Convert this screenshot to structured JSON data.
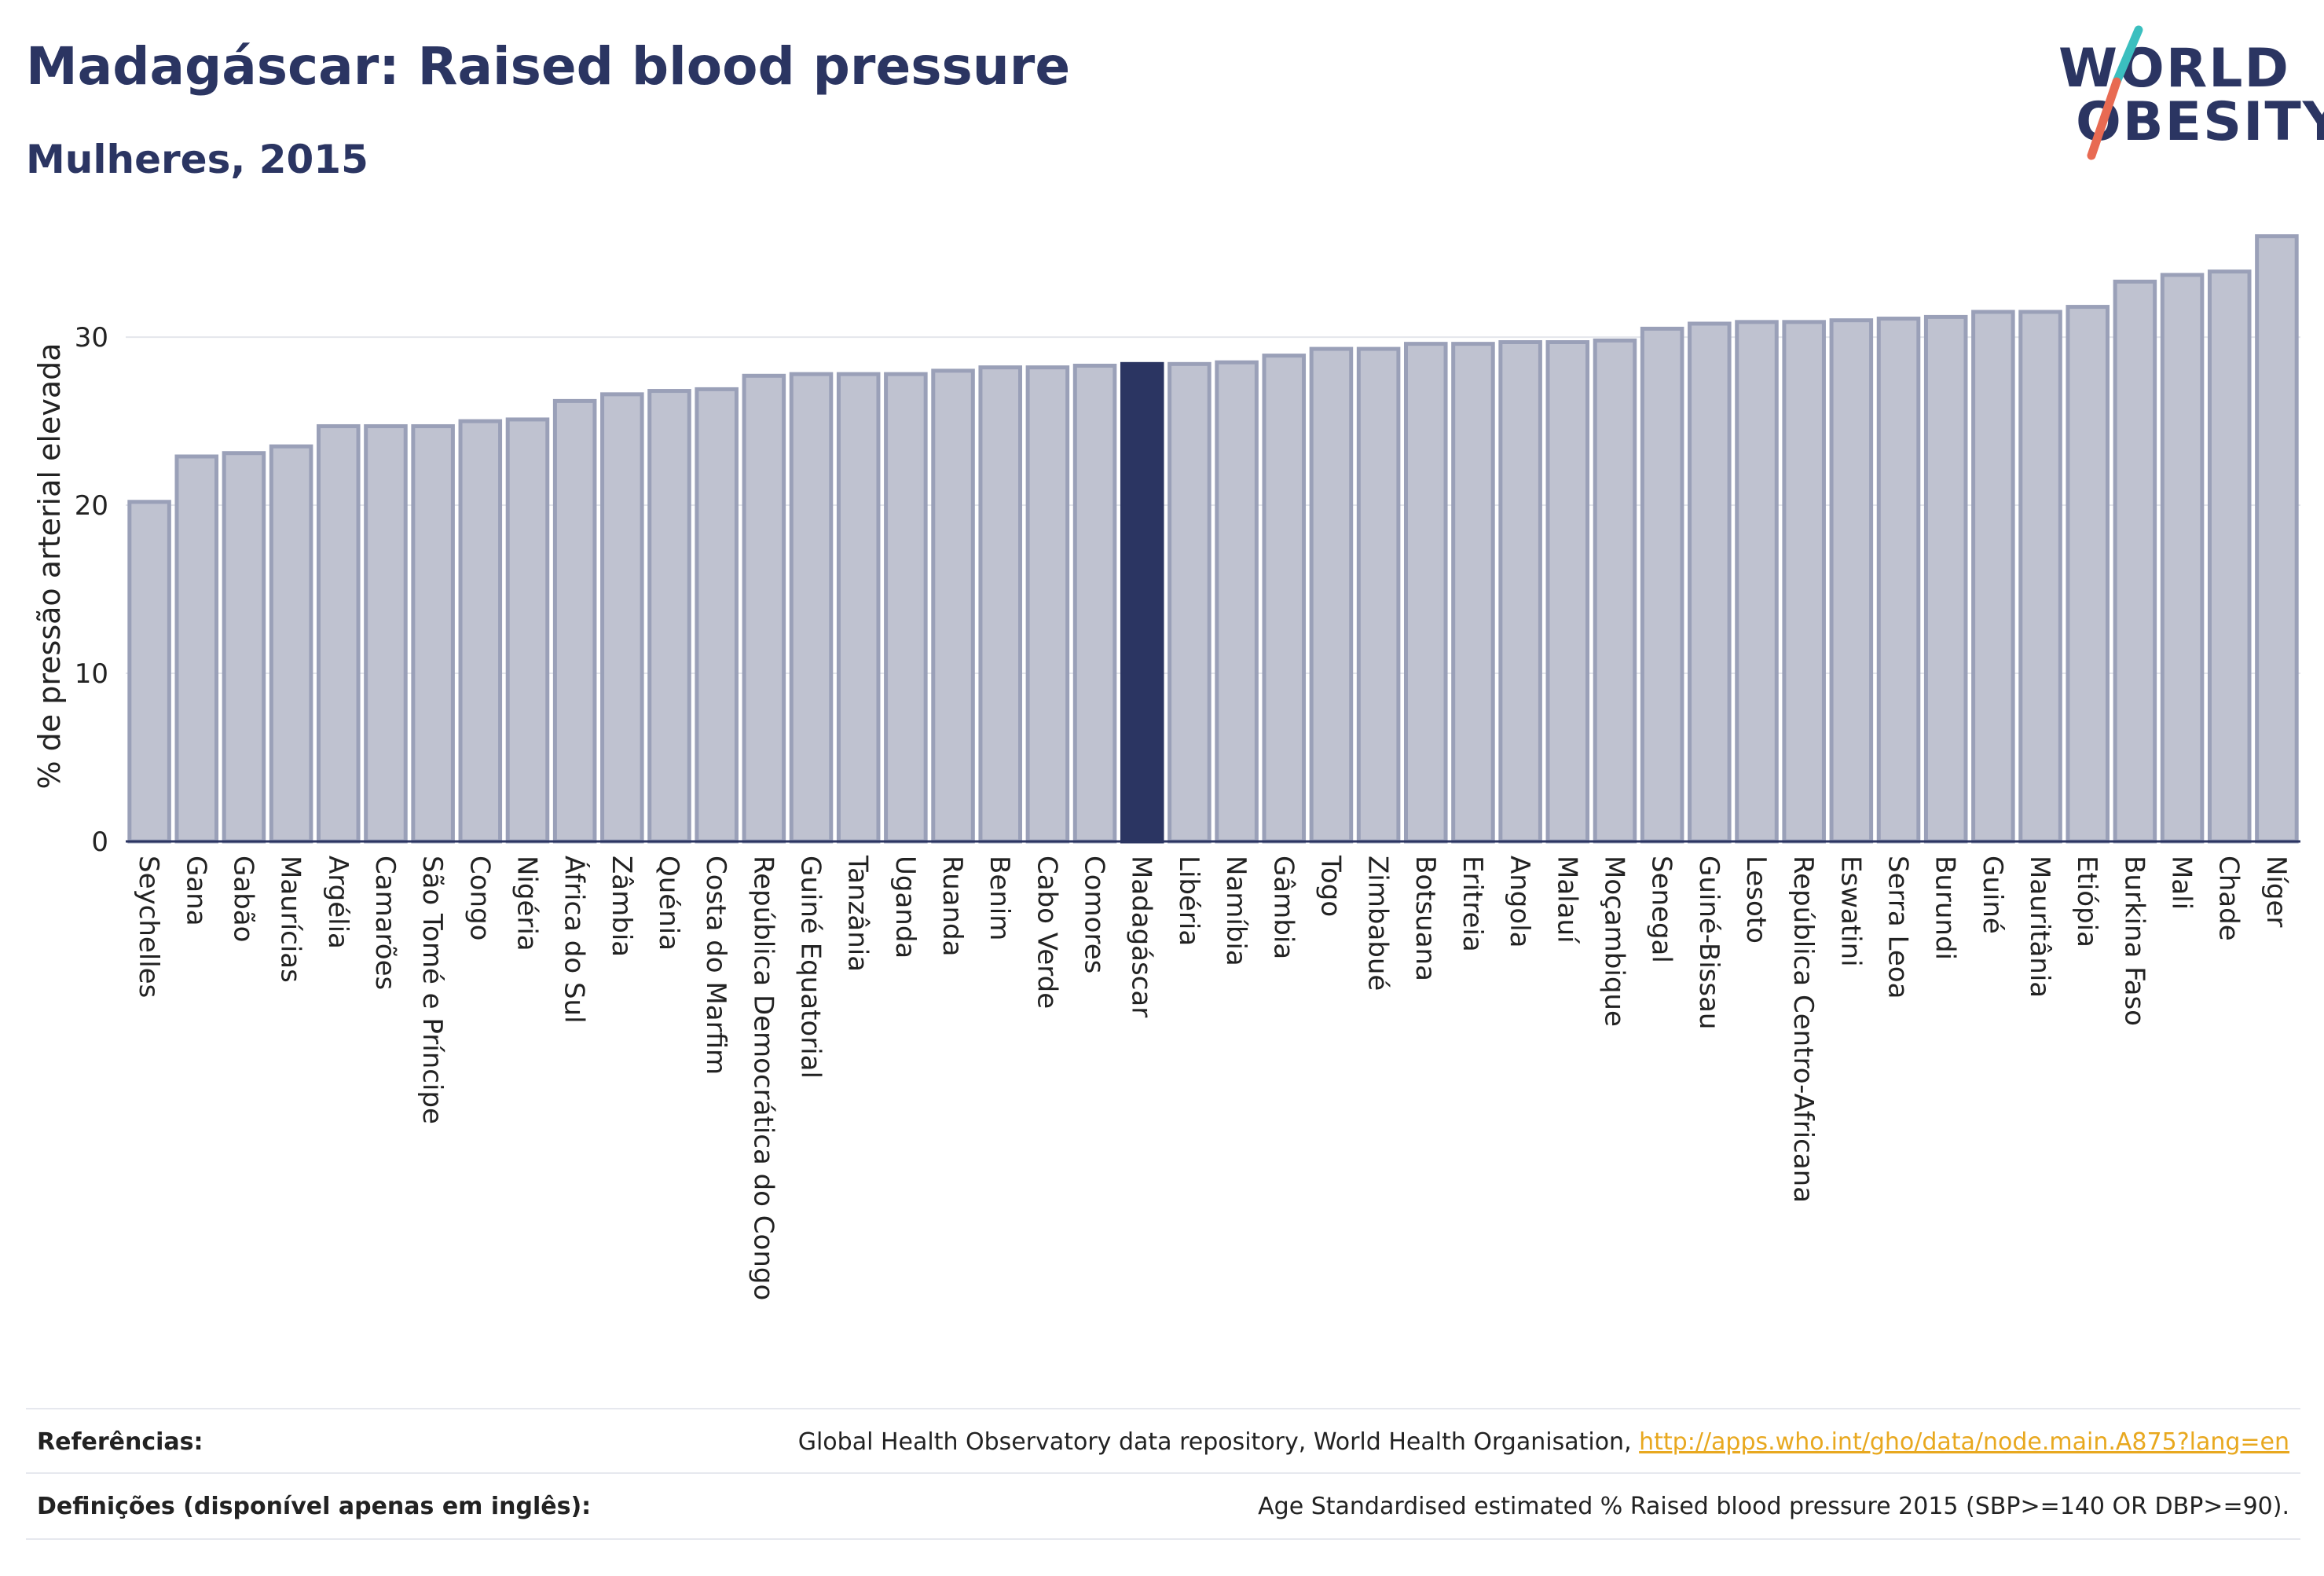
{
  "header": {
    "title": "Madagáscar: Raised blood pressure",
    "subtitle": "Mulheres, 2015"
  },
  "logo": {
    "line1": "WORLD",
    "line2": "OBESITY",
    "text_color": "#2b3562",
    "slash_top_color": "#3bbfbf",
    "slash_bottom_color": "#e86a52"
  },
  "colors": {
    "bar_fill": "#bfc2d0",
    "bar_stroke": "#9aa0b8",
    "highlight_fill": "#2b3562",
    "text": "#2b3562",
    "grid": "#e4e6ec"
  },
  "chart_data": {
    "type": "bar",
    "ylabel": "% de pressão arterial elevada",
    "xlabel": "",
    "ylim": [
      0,
      36.5
    ],
    "yticks": [
      0,
      10,
      20,
      30
    ],
    "grid": true,
    "highlight": "Madagáscar",
    "categories": [
      "Seychelles",
      "Gana",
      "Gabão",
      "Maurícias",
      "Argélia",
      "Camarões",
      "São Tomé e Príncipe",
      "Congo",
      "Nigéria",
      "África do Sul",
      "Zâmbia",
      "Quénia",
      "Costa do Marfim",
      "República Democrática do Congo",
      "Guiné Equatorial",
      "Tanzânia",
      "Uganda",
      "Ruanda",
      "Benim",
      "Cabo Verde",
      "Comores",
      "Madagáscar",
      "Libéria",
      "Namíbia",
      "Gâmbia",
      "Togo",
      "Zimbabué",
      "Botsuana",
      "Eritreia",
      "Angola",
      "Malauí",
      "Moçambique",
      "Senegal",
      "Guiné-Bissau",
      "Lesoto",
      "República Centro-Africana",
      "Eswatini",
      "Serra Leoa",
      "Burundi",
      "Guiné",
      "Mauritânia",
      "Etiópia",
      "Burkina Faso",
      "Mali",
      "Chade",
      "Níger"
    ],
    "values": [
      20.2,
      22.9,
      23.1,
      23.5,
      24.7,
      24.7,
      24.7,
      25.0,
      25.1,
      26.2,
      26.6,
      26.8,
      26.9,
      27.7,
      27.8,
      27.8,
      27.8,
      28.0,
      28.2,
      28.2,
      28.3,
      28.4,
      28.4,
      28.5,
      28.9,
      29.3,
      29.3,
      29.6,
      29.6,
      29.7,
      29.7,
      29.8,
      30.5,
      30.8,
      30.9,
      30.9,
      31.0,
      31.1,
      31.2,
      31.5,
      31.5,
      31.8,
      33.3,
      33.7,
      33.9,
      36.0
    ]
  },
  "footer": {
    "references_label": "Referências:",
    "references_text": "Global Health Observatory data repository, World Health Organisation, ",
    "references_link": "http://apps.who.int/gho/data/node.main.A875?lang=en",
    "definitions_label": "Definições (disponível apenas em inglês):",
    "definitions_text": "Age Standardised estimated % Raised blood pressure 2015 (SBP>=140 OR DBP>=90)."
  }
}
